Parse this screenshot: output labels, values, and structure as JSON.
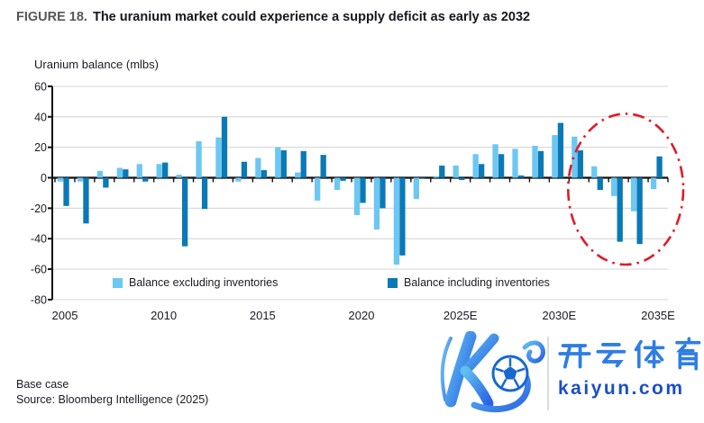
{
  "figure": {
    "label": "FIGURE 18.",
    "title": "The uranium market could experience a supply deficit as early as 2032"
  },
  "chart_data": {
    "type": "bar",
    "title": "Uranium balance (mlbs)",
    "ylabel": "Uranium balance (mlbs)",
    "ylim": [
      -80,
      60
    ],
    "ytick_step": 20,
    "grid": true,
    "legend_position": "bottom",
    "categories": [
      "2005",
      "2006",
      "2007",
      "2008",
      "2009",
      "2010",
      "2011",
      "2012",
      "2013",
      "2014",
      "2015",
      "2016",
      "2017",
      "2018",
      "2019",
      "2020",
      "2021",
      "2022",
      "2023",
      "2024",
      "2025E",
      "2026E",
      "2027E",
      "2028E",
      "2029E",
      "2030E",
      "2031E",
      "2032E",
      "2033E",
      "2034E",
      "2035E"
    ],
    "xtick_labels": [
      "2005",
      "2010",
      "2015",
      "2020",
      "2025E",
      "2030E",
      "2035E"
    ],
    "series": [
      {
        "name": "Balance excluding inventories",
        "color": "#6cc7f2",
        "values": [
          -2.5,
          -2.5,
          4.5,
          6.5,
          9,
          9,
          2,
          24,
          26.5,
          -2.5,
          13,
          20,
          3.5,
          -15,
          -8,
          -24.5,
          -34,
          -57,
          -14,
          1,
          8,
          15.5,
          22,
          19,
          21,
          28,
          27,
          7.5,
          -12,
          -22,
          -7.5
        ]
      },
      {
        "name": "Balance including inventories",
        "color": "#0a79b6",
        "values": [
          -18.5,
          -30,
          -6.5,
          5.5,
          -2.5,
          10,
          -45,
          -20.5,
          40,
          10.5,
          5,
          18,
          17.5,
          15,
          -2,
          -16.5,
          -20,
          -51,
          -0.5,
          8,
          -1.5,
          9,
          15.5,
          1.5,
          17.5,
          36,
          18,
          -8,
          -42,
          -43.5,
          14
        ]
      }
    ],
    "annotation": {
      "shape": "dash-dot-ellipse",
      "color": "#e11a28",
      "category_range": [
        "2031E",
        "2035E"
      ],
      "value_range": [
        -57,
        42
      ]
    }
  },
  "footer": {
    "note": "Base case",
    "source": "Source: Bloomberg Intelligence (2025)"
  },
  "watermark": {
    "brand_cn": "开云体育",
    "brand_url": "kaiyun.com",
    "logo": "kaiyun-k-soccer-ball-logo"
  },
  "colors": {
    "series_light": "#6cc7f2",
    "series_dark": "#0a79b6",
    "annotation_red": "#e11a28",
    "figure_label_gray": "#54565a",
    "text_dark": "#1a1a24",
    "watermark_blue": "#2e7ee2",
    "watermark_dark_blue": "#1b4ec6",
    "gridline": "#dadada"
  }
}
